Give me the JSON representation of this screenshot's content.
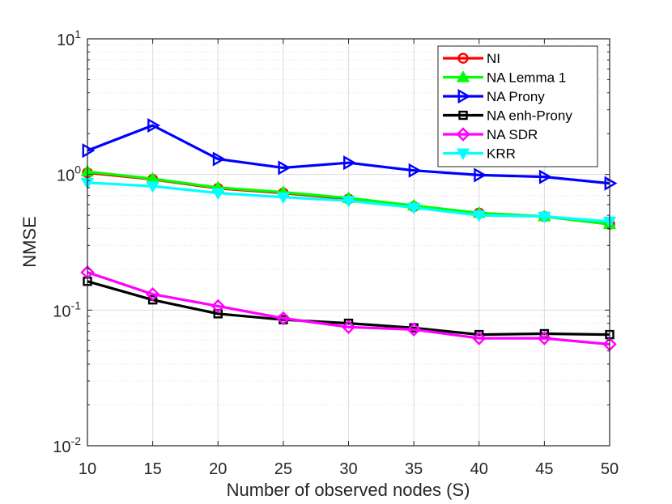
{
  "chart_data": {
    "type": "line",
    "yscale": "log",
    "xlabel": "Number of observed nodes (S)",
    "ylabel": "NMSE",
    "xlim": [
      10,
      50
    ],
    "ylim": [
      0.01,
      10
    ],
    "x": [
      10,
      15,
      20,
      25,
      30,
      35,
      40,
      45,
      50
    ],
    "xticks": [
      {
        "value": 10,
        "label": "10"
      },
      {
        "value": 15,
        "label": "15"
      },
      {
        "value": 20,
        "label": "20"
      },
      {
        "value": 25,
        "label": "25"
      },
      {
        "value": 30,
        "label": "30"
      },
      {
        "value": 35,
        "label": "35"
      },
      {
        "value": 40,
        "label": "40"
      },
      {
        "value": 45,
        "label": "45"
      },
      {
        "value": 50,
        "label": "50"
      }
    ],
    "yticks": [
      {
        "value": 10,
        "base": "10",
        "exp": "1"
      },
      {
        "value": 1,
        "base": "10",
        "exp": "0"
      },
      {
        "value": 0.1,
        "base": "10",
        "exp": "-1"
      },
      {
        "value": 0.01,
        "base": "10",
        "exp": "-2"
      }
    ],
    "grid": true,
    "legend_position": "top-right",
    "series": [
      {
        "name": "NI",
        "key": "ni",
        "color": "#ff0000",
        "marker": "circle",
        "values": [
          1.03,
          0.92,
          0.79,
          0.73,
          0.66,
          0.58,
          0.52,
          0.49,
          0.43
        ]
      },
      {
        "name": "NA Lemma 1",
        "key": "na-lemma-1",
        "color": "#00ff00",
        "marker": "triangle-up",
        "values": [
          1.05,
          0.93,
          0.8,
          0.74,
          0.67,
          0.59,
          0.52,
          0.49,
          0.43
        ]
      },
      {
        "name": "NA Prony",
        "key": "na-prony",
        "color": "#0000ff",
        "marker": "triangle-right",
        "values": [
          1.5,
          2.3,
          1.3,
          1.12,
          1.22,
          1.07,
          0.99,
          0.96,
          0.86
        ]
      },
      {
        "name": "NA enh-Prony",
        "key": "na-enh-prony",
        "color": "#000000",
        "marker": "square",
        "values": [
          0.163,
          0.119,
          0.094,
          0.085,
          0.08,
          0.074,
          0.066,
          0.067,
          0.066
        ]
      },
      {
        "name": "NA SDR",
        "key": "na-sdr",
        "color": "#ff00ff",
        "marker": "diamond",
        "values": [
          0.19,
          0.131,
          0.107,
          0.087,
          0.075,
          0.072,
          0.062,
          0.062,
          0.056
        ]
      },
      {
        "name": "KRR",
        "key": "krr",
        "color": "#00ffff",
        "marker": "triangle-down",
        "values": [
          0.87,
          0.82,
          0.73,
          0.68,
          0.64,
          0.57,
          0.5,
          0.49,
          0.45
        ]
      }
    ]
  }
}
